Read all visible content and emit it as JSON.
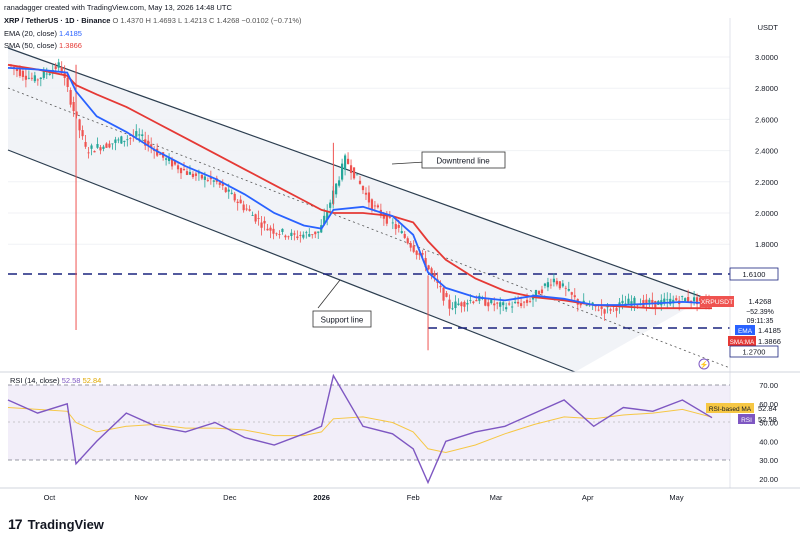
{
  "header": {
    "attribution": "ranadagger created with TradingView.com, May 13, 2026 14:48 UTC",
    "symbol_line": "XRP / TetherUS · 1D · Binance",
    "ohlc": "O 1.4370  H 1.4693  L 1.4213  C 1.4268  −0.0102 (−0.71%)",
    "ema_label": "EMA (20, close)",
    "ema_value": "1.4185",
    "sma_label": "SMA (50, close)",
    "sma_value": "1.3866",
    "currency": "USDT"
  },
  "colors": {
    "up": "#26a69a",
    "down": "#ef5350",
    "ema": "#2962ff",
    "sma": "#e53935",
    "channel": "#2c3e50",
    "rsi": "#7e57c2",
    "rsi_ma": "#f6c744"
  },
  "annotations": {
    "downtrend": "Downtrend line",
    "support": "Support line"
  },
  "price_axis": {
    "ticks": [
      "3.0000",
      "2.8000",
      "2.6000",
      "2.4000",
      "2.2000",
      "2.0000",
      "1.8000"
    ],
    "labels": {
      "resistance": "1.6100",
      "symbol": "XRPUSDT",
      "last": "1.4268",
      "change": "−52.39%",
      "countdown": "09:11:35",
      "ema_tag": "EMA",
      "ema": "1.4185",
      "sma_tag": "SMA:MA",
      "sma": "1.3866",
      "support": "1.2700"
    }
  },
  "rsi": {
    "title": "RSI (14, close)",
    "value": "52.58",
    "ma_value": "52.84",
    "ma_tag": "RSI-based MA",
    "rsi_tag": "RSI",
    "ticks": [
      "70.00",
      "60.00",
      "50.00",
      "40.00",
      "30.00",
      "20.00"
    ]
  },
  "x_axis": [
    "Oct",
    "Nov",
    "Dec",
    "2026",
    "Feb",
    "Mar",
    "Apr",
    "May"
  ],
  "logo_text": "TradingView",
  "chart_data": {
    "type": "line",
    "title": "XRP / TetherUS · 1D · Binance",
    "x": [
      "2025-09-17",
      "2025-09-27",
      "2025-10-07",
      "2025-10-10",
      "2025-10-17",
      "2025-10-27",
      "2025-11-06",
      "2025-11-16",
      "2025-11-26",
      "2025-12-06",
      "2025-12-16",
      "2025-12-26",
      "2026-01-01",
      "2026-01-05",
      "2026-01-15",
      "2026-01-25",
      "2026-02-01",
      "2026-02-06",
      "2026-02-12",
      "2026-02-22",
      "2026-03-04",
      "2026-03-14",
      "2026-03-24",
      "2026-04-03",
      "2026-04-13",
      "2026-04-23",
      "2026-05-03",
      "2026-05-13"
    ],
    "series": [
      {
        "name": "XRPUSDT",
        "values": [
          2.95,
          2.85,
          2.95,
          2.4,
          2.45,
          2.5,
          2.35,
          2.25,
          2.2,
          2.05,
          1.9,
          1.85,
          1.88,
          2.35,
          2.05,
          1.9,
          1.7,
          1.4,
          1.45,
          1.4,
          1.43,
          1.58,
          1.42,
          1.38,
          1.43,
          1.42,
          1.45,
          1.43
        ]
      },
      {
        "name": "EMA",
        "values": [
          2.93,
          2.92,
          2.9,
          2.78,
          2.62,
          2.52,
          2.4,
          2.3,
          2.22,
          2.12,
          2.0,
          1.92,
          1.9,
          2.02,
          2.04,
          1.98,
          1.86,
          1.62,
          1.52,
          1.46,
          1.44,
          1.47,
          1.45,
          1.41,
          1.41,
          1.42,
          1.43,
          1.42
        ]
      },
      {
        "name": "SMA",
        "values": [
          2.95,
          2.92,
          2.88,
          2.82,
          2.76,
          2.68,
          2.58,
          2.48,
          2.38,
          2.28,
          2.18,
          2.08,
          2.02,
          2.0,
          2.0,
          1.98,
          1.94,
          1.82,
          1.7,
          1.58,
          1.5,
          1.46,
          1.44,
          1.41,
          1.4,
          1.39,
          1.39,
          1.39
        ]
      },
      {
        "name": "RSI",
        "values": [
          62,
          55,
          60,
          28,
          40,
          55,
          48,
          45,
          50,
          42,
          38,
          44,
          48,
          75,
          48,
          44,
          36,
          18,
          40,
          45,
          48,
          55,
          62,
          48,
          58,
          56,
          62,
          52.58
        ]
      },
      {
        "name": "RSI-based MA",
        "values": [
          58,
          57,
          56,
          50,
          45,
          48,
          49,
          47,
          47,
          46,
          43,
          43,
          45,
          52,
          53,
          50,
          45,
          36,
          34,
          38,
          44,
          49,
          53,
          52,
          54,
          55,
          57,
          52.84
        ]
      }
    ],
    "levels": {
      "resistance": 1.61,
      "support": 1.27
    },
    "ylim": [
      1.2,
      3.1
    ],
    "rsi_bands": [
      70,
      50,
      30
    ]
  }
}
